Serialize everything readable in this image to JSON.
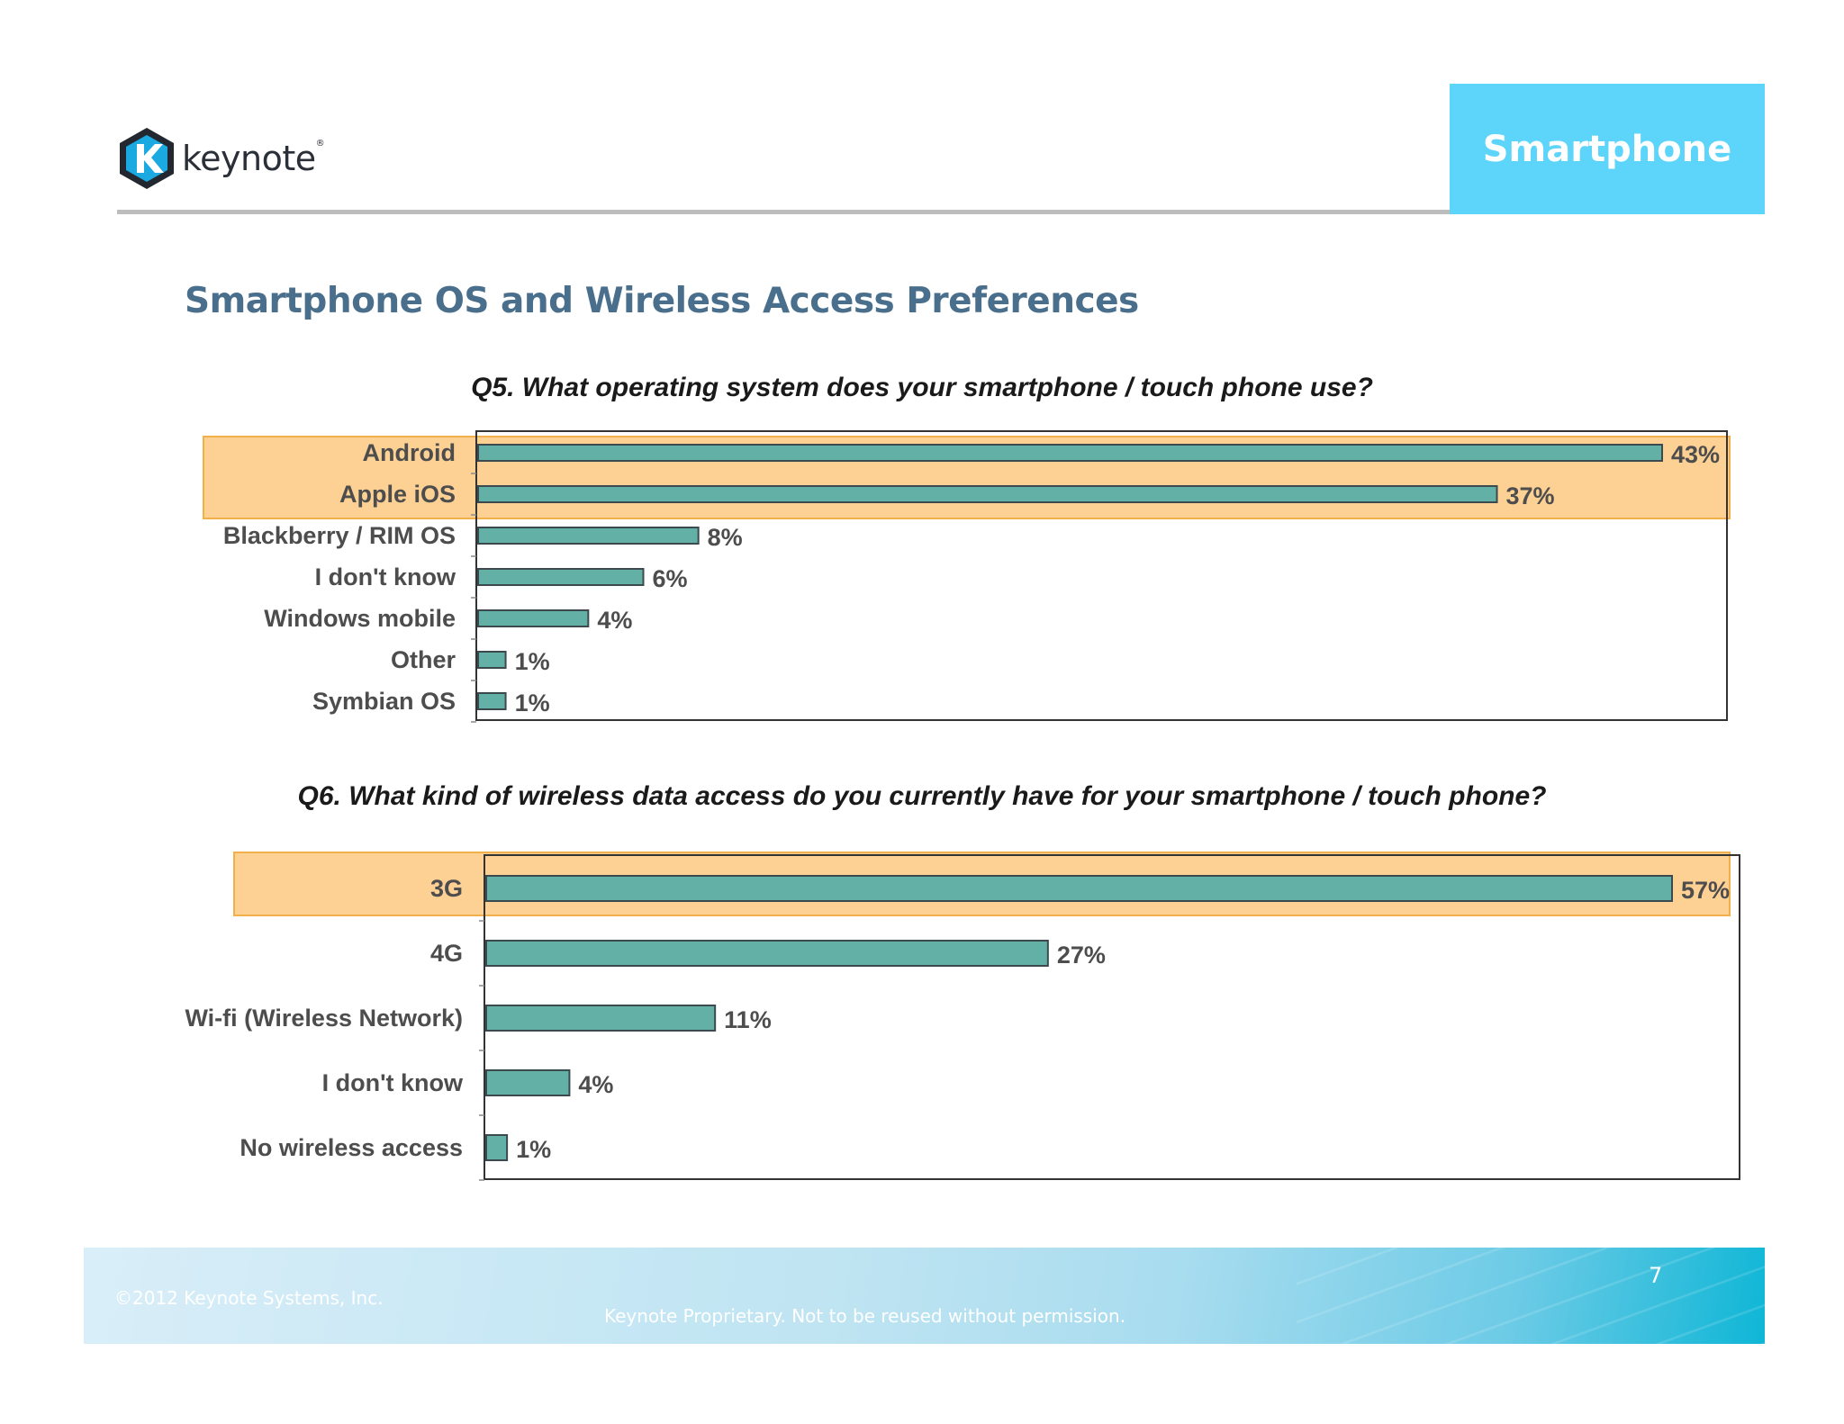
{
  "header": {
    "logo_text": "keynote",
    "logo_reg": "®",
    "section_badge": "Smartphone"
  },
  "page_title": "Smartphone OS and Wireless Access Preferences",
  "colors": {
    "bar_fill": "#62b0a6",
    "bar_stroke": "#3c4a4f",
    "highlight": "#fdd093",
    "highlight_border": "#f2b04a",
    "title_blue": "#4a6f8c",
    "badge": "#5dd5fa"
  },
  "chart_data": [
    {
      "type": "bar",
      "orientation": "horizontal",
      "title": "Q5. What operating system does your smartphone / touch phone use?",
      "categories": [
        "Android",
        "Apple iOS",
        "Blackberry / RIM OS",
        "I don't know",
        "Windows mobile",
        "Other",
        "Symbian OS"
      ],
      "values": [
        43,
        37,
        8,
        6,
        4,
        1,
        1
      ],
      "value_labels": [
        "43%",
        "37%",
        "8%",
        "6%",
        "4%",
        "1%",
        "1%"
      ],
      "unit": "%",
      "xlim": [
        0,
        45.5
      ],
      "grid": false,
      "legend": "none",
      "highlighted": [
        "Android",
        "Apple iOS"
      ]
    },
    {
      "type": "bar",
      "orientation": "horizontal",
      "title": "Q6. What kind of wireless data access do you currently have for your smartphone / touch phone?",
      "categories": [
        "3G",
        "4G",
        "Wi-fi (Wireless Network)",
        "I don't know",
        "No wireless access"
      ],
      "values": [
        57,
        27,
        11,
        4,
        1
      ],
      "value_labels": [
        "57%",
        "27%",
        "11%",
        "4%",
        "1%"
      ],
      "unit": "%",
      "xlim": [
        0,
        60.3
      ],
      "grid": false,
      "legend": "none",
      "highlighted": [
        "3G"
      ]
    }
  ],
  "footer": {
    "copyright": "©2012 Keynote Systems, Inc.",
    "note": "Keynote Proprietary. Not to be reused without permission.",
    "page_number": "7"
  }
}
